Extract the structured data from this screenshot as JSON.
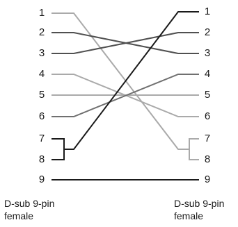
{
  "diagram": {
    "left_connector": {
      "name_line1": "D-sub 9-pin",
      "name_line2": "female",
      "pins": [
        "1",
        "2",
        "3",
        "4",
        "5",
        "6",
        "7",
        "8",
        "9"
      ]
    },
    "right_connector": {
      "name_line1": "D-sub 9-pin",
      "name_line2": "female",
      "pins": [
        "1",
        "2",
        "3",
        "4",
        "5",
        "6",
        "7",
        "8",
        "9"
      ]
    },
    "wires": [
      {
        "from": "1",
        "to": "7",
        "color": "#aaaaaa"
      },
      {
        "from": "2",
        "to": "3",
        "color": "#505050"
      },
      {
        "from": "3",
        "to": "2",
        "color": "#505050"
      },
      {
        "from": "4",
        "to": "6",
        "color": "#aaaaaa"
      },
      {
        "from": "5",
        "to": "5",
        "color": "#aaaaaa"
      },
      {
        "from": "6",
        "to": "4",
        "color": "#707070"
      },
      {
        "from": "7",
        "to": "1",
        "color": "#1a1a1a"
      },
      {
        "from": "9",
        "to": "9",
        "color": "#1a1a1a"
      }
    ],
    "jumpers": [
      {
        "side": "left",
        "pins": [
          "7",
          "8"
        ],
        "color": "#1a1a1a"
      },
      {
        "side": "right",
        "pins": [
          "7",
          "8"
        ],
        "color": "#aaaaaa"
      }
    ]
  }
}
